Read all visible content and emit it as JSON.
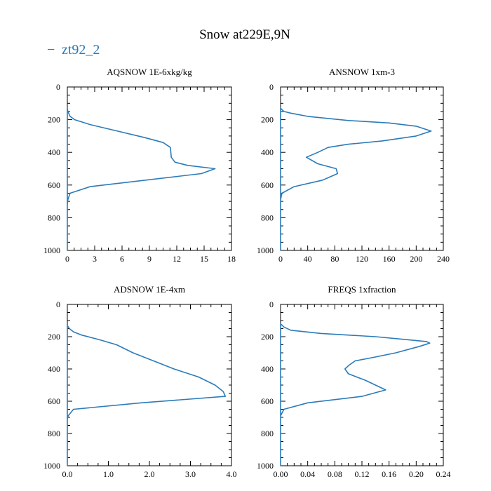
{
  "figure": {
    "title": "Snow at229E,9N",
    "legend_label": "zt92_2",
    "legend_marker": "−",
    "line_color": "#2b7bb9"
  },
  "chart_data": [
    {
      "type": "line",
      "title": "AQSNOW  1E-6xkg/kg",
      "xlabel": "",
      "ylabel": "",
      "xlim": [
        0,
        18
      ],
      "ylim": [
        1000,
        0
      ],
      "xticks": [
        0,
        3,
        6,
        9,
        12,
        15,
        18
      ],
      "xtick_labels": [
        "0",
        "3",
        "6",
        "9",
        "12",
        "15",
        "18"
      ],
      "yticks": [
        0,
        200,
        400,
        600,
        800,
        1000
      ],
      "ytick_labels": [
        "0",
        "200",
        "400",
        "600",
        "800",
        "1000"
      ],
      "series": [
        {
          "name": "zt92_2",
          "x": [
            0,
            0,
            0,
            0.05,
            0.3,
            0.8,
            2.5,
            5.5,
            8.5,
            10.5,
            11.3,
            11.4,
            11.8,
            13.2,
            16.2,
            14.7,
            2.5,
            0.3,
            0.05,
            0,
            0,
            0
          ],
          "y": [
            1000,
            300,
            130,
            150,
            180,
            200,
            230,
            270,
            310,
            340,
            370,
            430,
            460,
            480,
            500,
            530,
            610,
            650,
            690,
            720,
            800,
            1000
          ]
        }
      ]
    },
    {
      "type": "line",
      "title": "ANSNOW  1xm-3",
      "xlabel": "",
      "ylabel": "",
      "xlim": [
        0,
        240
      ],
      "ylim": [
        1000,
        0
      ],
      "xticks": [
        0,
        40,
        80,
        120,
        160,
        200,
        240
      ],
      "xtick_labels": [
        "0",
        "40",
        "80",
        "120",
        "160",
        "200",
        "240"
      ],
      "yticks": [
        0,
        200,
        400,
        600,
        800,
        1000
      ],
      "ytick_labels": [
        "0",
        "200",
        "400",
        "600",
        "800",
        "1000"
      ],
      "series": [
        {
          "name": "zt92_2",
          "x": [
            0,
            0,
            0,
            5,
            15,
            40,
            100,
            160,
            200,
            222,
            200,
            150,
            100,
            70,
            55,
            38,
            55,
            82,
            84,
            62,
            20,
            2,
            0,
            0,
            0
          ],
          "y": [
            1000,
            300,
            130,
            150,
            160,
            180,
            205,
            220,
            240,
            270,
            300,
            330,
            350,
            370,
            400,
            430,
            470,
            500,
            530,
            570,
            610,
            650,
            690,
            800,
            1000
          ]
        }
      ]
    },
    {
      "type": "line",
      "title": "ADSNOW  1E-4xm",
      "xlabel": "",
      "ylabel": "",
      "xlim": [
        0,
        4
      ],
      "ylim": [
        1000,
        0
      ],
      "xticks": [
        0,
        1,
        2,
        3,
        4
      ],
      "xtick_labels": [
        "0.0",
        "1.0",
        "2.0",
        "3.0",
        "4.0"
      ],
      "yticks": [
        0,
        200,
        400,
        600,
        800,
        1000
      ],
      "ytick_labels": [
        "0",
        "200",
        "400",
        "600",
        "800",
        "1000"
      ],
      "series": [
        {
          "name": "zt92_2",
          "x": [
            0,
            0,
            0,
            0.05,
            0.15,
            0.35,
            0.8,
            1.2,
            1.6,
            2.1,
            2.6,
            3.2,
            3.6,
            3.8,
            3.85,
            1.8,
            0.15,
            0.02,
            0,
            0,
            0
          ],
          "y": [
            1000,
            300,
            130,
            150,
            170,
            190,
            220,
            250,
            300,
            350,
            400,
            450,
            500,
            540,
            570,
            610,
            650,
            690,
            710,
            800,
            1000
          ]
        }
      ]
    },
    {
      "type": "line",
      "title": "FREQS  1xfraction",
      "xlabel": "",
      "ylabel": "",
      "xlim": [
        0,
        0.24
      ],
      "ylim": [
        1000,
        0
      ],
      "xticks": [
        0,
        0.04,
        0.08,
        0.12,
        0.16,
        0.2,
        0.24
      ],
      "xtick_labels": [
        "0.00",
        "0.04",
        "0.08",
        "0.12",
        "0.16",
        "0.20",
        "0.24"
      ],
      "yticks": [
        0,
        200,
        400,
        600,
        800,
        1000
      ],
      "ytick_labels": [
        "0",
        "200",
        "400",
        "600",
        "800",
        "1000"
      ],
      "series": [
        {
          "name": "zt92_2",
          "x": [
            0,
            0,
            0,
            0.005,
            0.015,
            0.06,
            0.14,
            0.19,
            0.215,
            0.22,
            0.205,
            0.17,
            0.135,
            0.11,
            0.1,
            0.095,
            0.1,
            0.125,
            0.155,
            0.12,
            0.04,
            0.005,
            0,
            0,
            0
          ],
          "y": [
            1000,
            300,
            120,
            140,
            160,
            180,
            200,
            220,
            230,
            240,
            260,
            300,
            330,
            350,
            380,
            400,
            430,
            470,
            530,
            570,
            610,
            650,
            690,
            800,
            1000
          ]
        }
      ]
    }
  ]
}
